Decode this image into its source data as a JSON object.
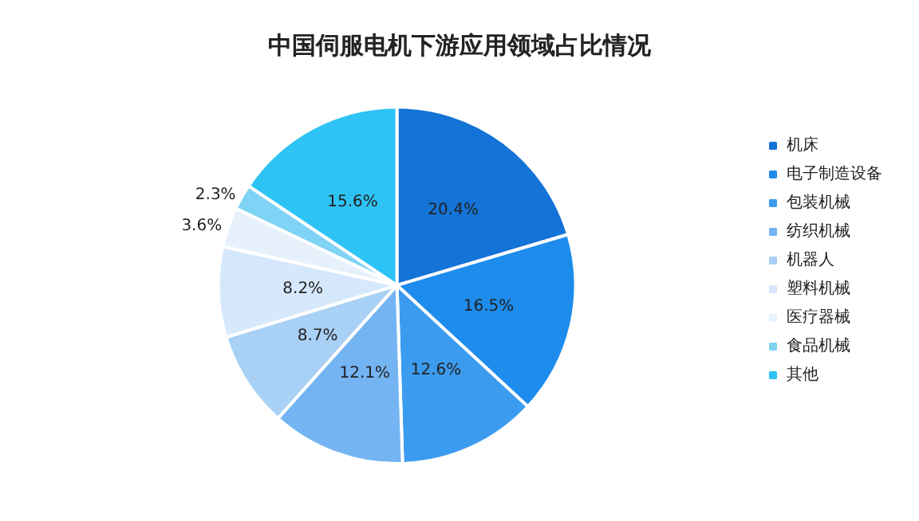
{
  "chart_data": {
    "type": "pie",
    "title": "中国伺服电机下游应用领域占比情况",
    "categories": [
      "机床",
      "电子制造设备",
      "包装机械",
      "纺织机械",
      "机器人",
      "塑料机械",
      "医疗器械",
      "食品机械",
      "其他"
    ],
    "values": [
      20.4,
      16.5,
      12.6,
      12.1,
      8.7,
      8.2,
      3.6,
      2.3,
      15.6
    ],
    "colors": [
      "#1473d6",
      "#1d8ced",
      "#3b9bef",
      "#74b4f2",
      "#a9d0f5",
      "#d6e8fb",
      "#e6f1fc",
      "#7fd3f5",
      "#2ec3f5"
    ],
    "value_labels": [
      "20.4%",
      "16.5%",
      "12.6%",
      "12.1%",
      "8.7%",
      "8.2%",
      "3.6%",
      "2.3%",
      "15.6%"
    ],
    "legend": "right"
  }
}
